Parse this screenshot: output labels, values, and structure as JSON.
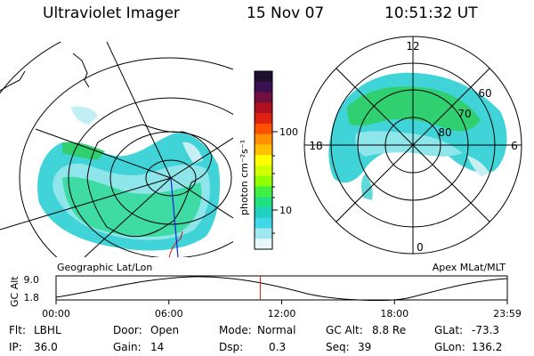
{
  "header": {
    "instrument": "Ultraviolet Imager",
    "date": "15 Nov 07",
    "time": "10:51:32 UT"
  },
  "left_panel": {
    "caption": "Geographic Lat/Lon"
  },
  "right_panel": {
    "caption": "Apex MLat/MLT",
    "mlt_labels": [
      "12",
      "18",
      "6",
      "0"
    ],
    "mlat_labels": [
      "60",
      "70",
      "80"
    ]
  },
  "colorbar": {
    "label": "photon cm⁻²s⁻¹",
    "ticks": [
      "100",
      "10"
    ],
    "colors": [
      "#201030",
      "#3a1050",
      "#701040",
      "#b01020",
      "#e02010",
      "#ff5000",
      "#ff9000",
      "#ffc000",
      "#ffff00",
      "#d0ff00",
      "#90ff00",
      "#40f040",
      "#20e080",
      "#20d0c0",
      "#40d8e8",
      "#a0e8f0",
      "#e8f8fa"
    ]
  },
  "timeline": {
    "ylabel": "GC Alt",
    "y_ticks": [
      "9.0",
      "1.8"
    ],
    "x_ticks": [
      "00:00",
      "06:00",
      "12:00",
      "18:00",
      "23:59"
    ],
    "current_time_fraction": 0.4525
  },
  "info": {
    "filter_label": "Flt:",
    "filter_value": "LBHL",
    "ip_label": "IP:",
    "ip_value": "36.0",
    "door_label": "Door:",
    "door_value": "Open",
    "gain_label": "Gain:",
    "gain_value": "14",
    "mode_label": "Mode:",
    "mode_value": "Normal",
    "dsp_label": "Dsp:",
    "dsp_value": "0.3",
    "gcalt_label": "GC Alt:",
    "gcalt_value": "8.8 Re",
    "seq_label": "Seq:",
    "seq_value": "39",
    "glat_label": "GLat:",
    "glat_value": "-73.3",
    "glon_label": "GLon:",
    "glon_value": "136.2"
  }
}
